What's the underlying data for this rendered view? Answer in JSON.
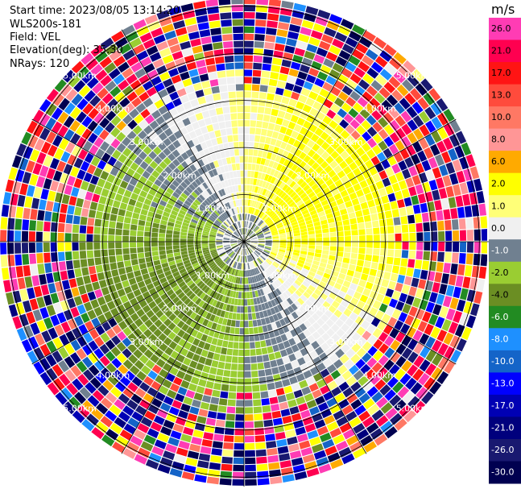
{
  "info": {
    "start_time": "Start time: 2023/08/05 13:14:20",
    "instrument": "WLS200s-181",
    "field": "Field: VEL",
    "elevation": "Elevation(deg): 35.30",
    "nrays": "NRays: 120"
  },
  "chart_data": {
    "type": "heatmap",
    "projection": "polar-ppi",
    "field": "VEL",
    "units": "m/s",
    "n_rays": 120,
    "elevation_deg": 35.3,
    "range_max_km": 5.2,
    "range_rings_km": [
      1,
      2,
      3,
      4,
      5
    ],
    "ring_labels": [
      "1.00km",
      "2.00km",
      "3.00km",
      "4.00km",
      "5.00km"
    ],
    "spoke_angles_deg": [
      0,
      30,
      60,
      90,
      120,
      150,
      180,
      210,
      240,
      270,
      300,
      330
    ],
    "colorbar": {
      "unit_label": "m/s",
      "tick_labels": [
        "26.0",
        "21.0",
        "17.0",
        "13.0",
        "10.0",
        "8.0",
        "6.0",
        "2.0",
        "1.0",
        "0.0",
        "-1.0",
        "-2.0",
        "-4.0",
        "-6.0",
        "-8.0",
        "-10.0",
        "-13.0",
        "-17.0",
        "-21.0",
        "-26.0",
        "-30.0"
      ],
      "colors": [
        "#ff3cb4",
        "#ff0050",
        "#ff1414",
        "#ff4b3c",
        "#ff7864",
        "#ff9696",
        "#ffaa00",
        "#ffff00",
        "#ffff78",
        "#f0f0f0",
        "#708090",
        "#9acd32",
        "#6b8e23",
        "#228b22",
        "#1e90ff",
        "#1464c8",
        "#0000ff",
        "#0000b4",
        "#00007d",
        "#191970",
        "#000050"
      ]
    },
    "velocity_pattern": {
      "inner_range_km": 3.2,
      "positive_sector_center_deg": 60,
      "negative_sector_center_deg": 240,
      "peak_inner_speed_ms": 2.5,
      "noisy_outer_range_km": 3.6
    }
  }
}
